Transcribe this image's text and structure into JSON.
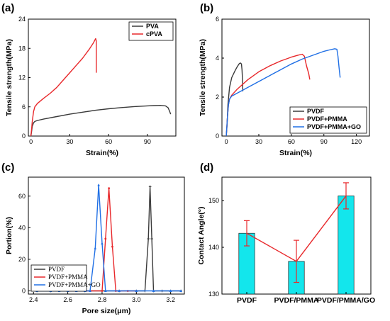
{
  "panels": {
    "a": {
      "letter": "(a)"
    },
    "b": {
      "letter": "(b)"
    },
    "c": {
      "letter": "(c)"
    },
    "d": {
      "letter": "(d)"
    }
  },
  "chart_data": [
    {
      "panel": "(a)",
      "type": "line",
      "xlabel": "Strain(%)",
      "ylabel": "Tensile strength(MPa)",
      "xlim": [
        -2,
        112
      ],
      "ylim": [
        0,
        24
      ],
      "xticks": [
        0,
        30,
        60,
        90
      ],
      "yticks": [
        0,
        6,
        12,
        18,
        24
      ],
      "legend_position": "top-right",
      "series": [
        {
          "name": "PVA",
          "color": "#3a3a3a",
          "x": [
            0,
            0.5,
            1,
            2,
            3,
            5,
            10,
            20,
            30,
            40,
            50,
            60,
            70,
            80,
            90,
            95,
            100,
            104,
            106,
            107,
            108
          ],
          "y": [
            0,
            1.0,
            2.0,
            2.7,
            3.0,
            3.2,
            3.5,
            4.0,
            4.5,
            4.9,
            5.3,
            5.6,
            5.85,
            6.05,
            6.2,
            6.25,
            6.3,
            6.2,
            5.8,
            5.2,
            4.5
          ]
        },
        {
          "name": "cPVA",
          "color": "#e8282b",
          "x": [
            0,
            0.5,
            1,
            2,
            3,
            5,
            10,
            15,
            20,
            25,
            30,
            35,
            40,
            45,
            48,
            50,
            50.5,
            50.5
          ],
          "y": [
            0,
            1.5,
            3.0,
            5.0,
            6.0,
            6.7,
            7.8,
            8.8,
            10.0,
            11.5,
            13.0,
            14.5,
            16.0,
            17.8,
            19.0,
            20.0,
            19.5,
            13.0
          ]
        }
      ]
    },
    {
      "panel": "(b)",
      "type": "line",
      "xlabel": "Strain(%)",
      "ylabel": "Tensile strength(MPa)",
      "xlim": [
        -4,
        132
      ],
      "ylim": [
        0,
        6
      ],
      "xticks": [
        0,
        30,
        60,
        90,
        120
      ],
      "yticks": [
        0,
        2,
        4,
        6
      ],
      "legend_position": "bottom-right",
      "series": [
        {
          "name": "PVDF",
          "color": "#3a3a3a",
          "x": [
            0,
            0.8,
            1.5,
            3,
            5,
            8,
            10,
            12,
            13,
            14,
            14.5,
            15,
            15.2
          ],
          "y": [
            0,
            0.6,
            1.6,
            2.5,
            3.0,
            3.35,
            3.55,
            3.72,
            3.75,
            3.7,
            3.4,
            2.8,
            2.3
          ]
        },
        {
          "name": "PVDF+PMMA",
          "color": "#e8282b",
          "x": [
            0,
            1,
            2,
            3,
            5,
            10,
            20,
            30,
            40,
            50,
            60,
            66,
            70,
            72,
            74,
            76,
            77
          ],
          "y": [
            0,
            0.9,
            1.6,
            1.9,
            2.1,
            2.4,
            2.9,
            3.3,
            3.6,
            3.85,
            4.05,
            4.15,
            4.2,
            4.1,
            3.6,
            3.2,
            2.9
          ]
        },
        {
          "name": "PVDF+PMMA+GO",
          "color": "#1f6fe5",
          "x": [
            0,
            1,
            2,
            3,
            5,
            10,
            20,
            30,
            40,
            50,
            60,
            70,
            80,
            90,
            95,
            100,
            102,
            103,
            104,
            105
          ],
          "y": [
            0,
            0.9,
            1.6,
            1.9,
            2.05,
            2.2,
            2.5,
            2.8,
            3.1,
            3.4,
            3.7,
            3.95,
            4.15,
            4.35,
            4.42,
            4.48,
            4.45,
            4.1,
            3.5,
            3.0
          ]
        }
      ]
    },
    {
      "panel": "(c)",
      "type": "line",
      "xlabel": "Pore size(μm)",
      "ylabel": "Portion(%)",
      "xlim": [
        2.37,
        3.28
      ],
      "ylim": [
        -2,
        72
      ],
      "xticks": [
        2.4,
        2.6,
        2.8,
        3.0,
        3.2
      ],
      "xtick_labels": [
        "2.4",
        "2.6",
        "2.8",
        "3.0",
        "3.2"
      ],
      "yticks": [
        0,
        20,
        40,
        60
      ],
      "legend_position": "bottom-left",
      "series": [
        {
          "name": "PVDF",
          "color": "#3a3a3a",
          "marker": "star",
          "x": [
            2.42,
            2.5,
            2.6,
            2.7,
            2.8,
            2.9,
            3.0,
            3.05,
            3.07,
            3.08,
            3.09,
            3.1,
            3.15,
            3.2,
            3.26
          ],
          "y": [
            0,
            0,
            0,
            0,
            0,
            0,
            0,
            0,
            33,
            66,
            33,
            0,
            0,
            0,
            0
          ]
        },
        {
          "name": "PVDF+PMMA",
          "color": "#e8282b",
          "marker": "circle",
          "x": [
            2.42,
            2.45,
            2.48,
            2.5,
            2.55,
            2.6,
            2.7,
            2.8,
            2.82,
            2.84,
            2.86,
            2.88,
            2.95,
            3.0
          ],
          "y": [
            0.5,
            1.5,
            0.5,
            1.2,
            0.3,
            0,
            0,
            0,
            33,
            65,
            28,
            0,
            0,
            0
          ]
        },
        {
          "name": "PVDF+PMMA+GO",
          "color": "#1f6fe5",
          "marker": "triangle",
          "x": [
            2.42,
            2.5,
            2.55,
            2.6,
            2.65,
            2.7,
            2.73,
            2.76,
            2.78,
            2.8,
            2.82,
            2.9,
            3.0,
            3.1,
            3.2,
            3.26
          ],
          "y": [
            0,
            0,
            0,
            0,
            0,
            0,
            0,
            27,
            67,
            30,
            0,
            0,
            0,
            0,
            0,
            0
          ]
        }
      ]
    },
    {
      "panel": "(d)",
      "type": "bar",
      "xlabel": "",
      "ylabel": "Contact Angle(°)",
      "categories": [
        "PVDF",
        "PVDF/PMMA",
        "PVDF/PMMA/GO"
      ],
      "values": [
        143,
        137,
        151
      ],
      "errors": [
        2.7,
        4.5,
        2.8
      ],
      "ylim": [
        130,
        155
      ],
      "yticks": [
        130,
        140,
        150
      ],
      "bar_color": "#13e6ec",
      "line_color": "#e8282b"
    }
  ]
}
